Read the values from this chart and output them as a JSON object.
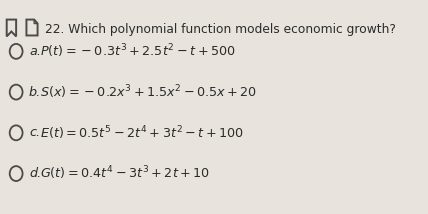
{
  "title": "22. Which polynomial function models economic growth?",
  "options": [
    {
      "label": "a.",
      "formula": "$P(t)=-0.3t^3+2.5t^2-t+500$"
    },
    {
      "label": "b.",
      "formula": "$S(x)=-0.2x^3+1.5x^2-0.5x+20$"
    },
    {
      "label": "c.",
      "formula": "$E(t)=0.5t^5-2t^4+3t^2-t+100$"
    },
    {
      "label": "d.",
      "formula": "$G(t)=0.4t^4-3t^3+2t+10$"
    }
  ],
  "bg_color": "#e8e4dd",
  "text_color": "#2b2b2b",
  "title_fontsize": 8.8,
  "option_fontsize": 9.2,
  "icon_color": "#4a4a4a",
  "circle_linewidth": 1.3
}
